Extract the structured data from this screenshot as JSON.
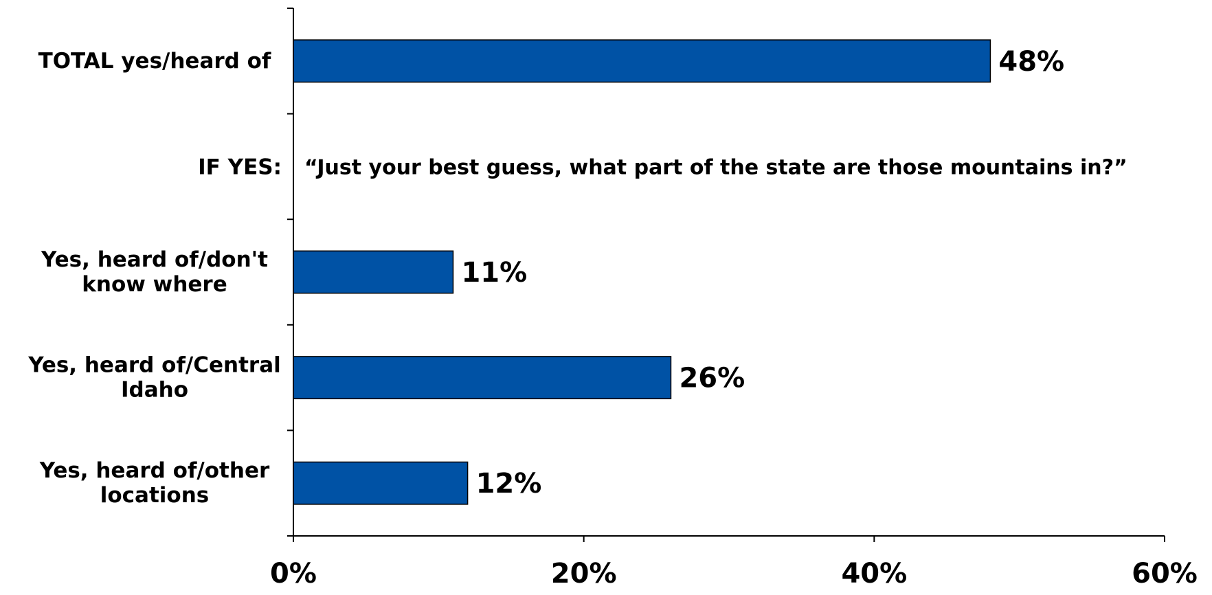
{
  "chart_data": {
    "type": "bar",
    "orientation": "horizontal",
    "categories": [
      "TOTAL yes/heard of",
      "",
      "Yes, heard of/don't know where",
      "Yes, heard of/Central Idaho",
      "Yes, heard of/other locations"
    ],
    "category_lines": [
      [
        "TOTAL yes/heard of"
      ],
      [],
      [
        "Yes, heard of/don't",
        "know where"
      ],
      [
        "Yes, heard of/Central",
        "Idaho"
      ],
      [
        "Yes, heard of/other",
        "locations"
      ]
    ],
    "values": [
      48,
      null,
      11,
      26,
      12
    ],
    "data_labels": [
      "48%",
      "",
      "11%",
      "26%",
      "12%"
    ],
    "annotation": {
      "category_index": 1,
      "prefix": "IF YES:",
      "text": "“Just your best guess, what part of the state are those mountains in?”"
    },
    "xlim": [
      0,
      60
    ],
    "xticks": [
      0,
      20,
      40,
      60
    ],
    "xtick_labels": [
      "0%",
      "20%",
      "40%",
      "60%"
    ],
    "title": "",
    "xlabel": "",
    "ylabel": "",
    "grid": false,
    "legend": "none",
    "bar_color": "#0052A5",
    "bar_stroke": "#000000"
  }
}
